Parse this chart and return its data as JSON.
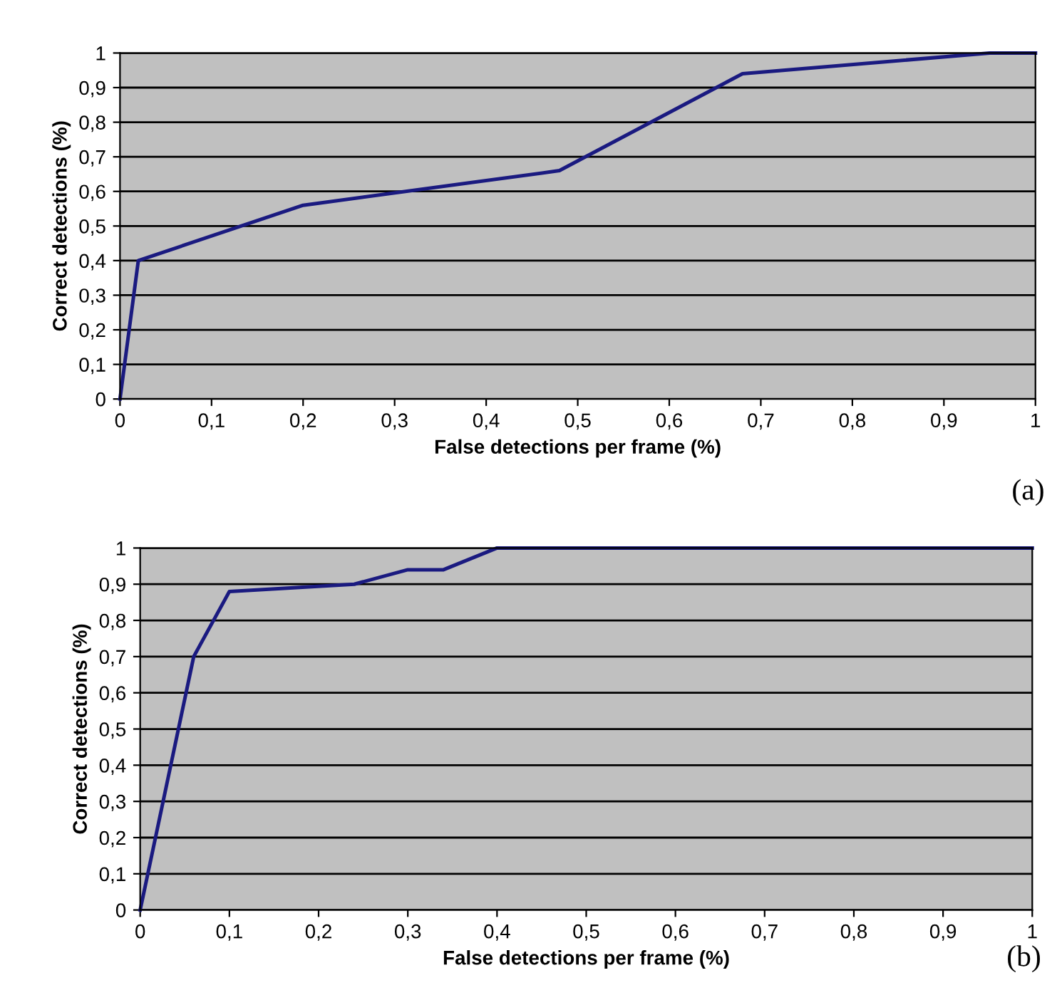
{
  "chart_data": [
    {
      "type": "line",
      "xlabel": "False detections per frame (%)",
      "ylabel": "Correct detections (%)",
      "annotations": [
        "(a)"
      ],
      "x": [
        0,
        0.02,
        0.2,
        0.48,
        0.68,
        0.95,
        1
      ],
      "series": [
        {
          "color": "#1a1a80",
          "values": [
            0,
            0.4,
            0.56,
            0.66,
            0.94,
            1.0,
            1.0
          ]
        }
      ],
      "xlim": [
        0,
        1
      ],
      "ylim": [
        0,
        1
      ],
      "xticks": [
        0,
        {
          "value": 0.1,
          "label": "0,1"
        },
        {
          "value": 0.2,
          "label": "0,2"
        },
        {
          "value": 0.3,
          "label": "0,3"
        },
        {
          "value": 0.4,
          "label": "0,4"
        },
        {
          "value": 0.5,
          "label": "0,5"
        },
        {
          "value": 0.6,
          "label": "0,6"
        },
        {
          "value": 0.7,
          "label": "0,7"
        },
        {
          "value": 0.8,
          "label": "0,8"
        },
        {
          "value": 0.9,
          "label": "0,9"
        },
        1
      ],
      "yticks": [
        0,
        {
          "value": 0.1,
          "label": "0,1"
        },
        {
          "value": 0.2,
          "label": "0,2"
        },
        {
          "value": 0.3,
          "label": "0,3"
        },
        {
          "value": 0.4,
          "label": "0,4"
        },
        {
          "value": 0.5,
          "label": "0,5"
        },
        {
          "value": 0.6,
          "label": "0,6"
        },
        {
          "value": 0.7,
          "label": "0,7"
        },
        {
          "value": 0.8,
          "label": "0,8"
        },
        {
          "value": 0.9,
          "label": "0,9"
        },
        1
      ],
      "grid": "y",
      "marker": "none",
      "line_style": "solid"
    },
    {
      "type": "line",
      "xlabel": "False detections per frame (%)",
      "ylabel": "Correct detections (%)",
      "annotations": [
        "(b)"
      ],
      "x": [
        0,
        0.06,
        0.1,
        0.24,
        0.3,
        0.34,
        0.4,
        1
      ],
      "series": [
        {
          "color": "#1a1a80",
          "values": [
            0,
            0.7,
            0.88,
            0.9,
            0.94,
            0.94,
            1.0,
            1.0
          ]
        }
      ],
      "xlim": [
        0,
        1
      ],
      "ylim": [
        0,
        1
      ],
      "xticks": [
        0,
        {
          "value": 0.1,
          "label": "0,1"
        },
        {
          "value": 0.2,
          "label": "0,2"
        },
        {
          "value": 0.3,
          "label": "0,3"
        },
        {
          "value": 0.4,
          "label": "0,4"
        },
        {
          "value": 0.5,
          "label": "0,5"
        },
        {
          "value": 0.6,
          "label": "0,6"
        },
        {
          "value": 0.7,
          "label": "0,7"
        },
        {
          "value": 0.8,
          "label": "0,8"
        },
        {
          "value": 0.9,
          "label": "0,9"
        },
        1
      ],
      "yticks": [
        0,
        {
          "value": 0.1,
          "label": "0,1"
        },
        {
          "value": 0.2,
          "label": "0,2"
        },
        {
          "value": 0.3,
          "label": "0,3"
        },
        {
          "value": 0.4,
          "label": "0,4"
        },
        {
          "value": 0.5,
          "label": "0,5"
        },
        {
          "value": 0.6,
          "label": "0,6"
        },
        {
          "value": 0.7,
          "label": "0,7"
        },
        {
          "value": 0.8,
          "label": "0,8"
        },
        {
          "value": 0.9,
          "label": "0,9"
        },
        1
      ],
      "grid": "y",
      "marker": "none",
      "line_style": "solid"
    }
  ]
}
